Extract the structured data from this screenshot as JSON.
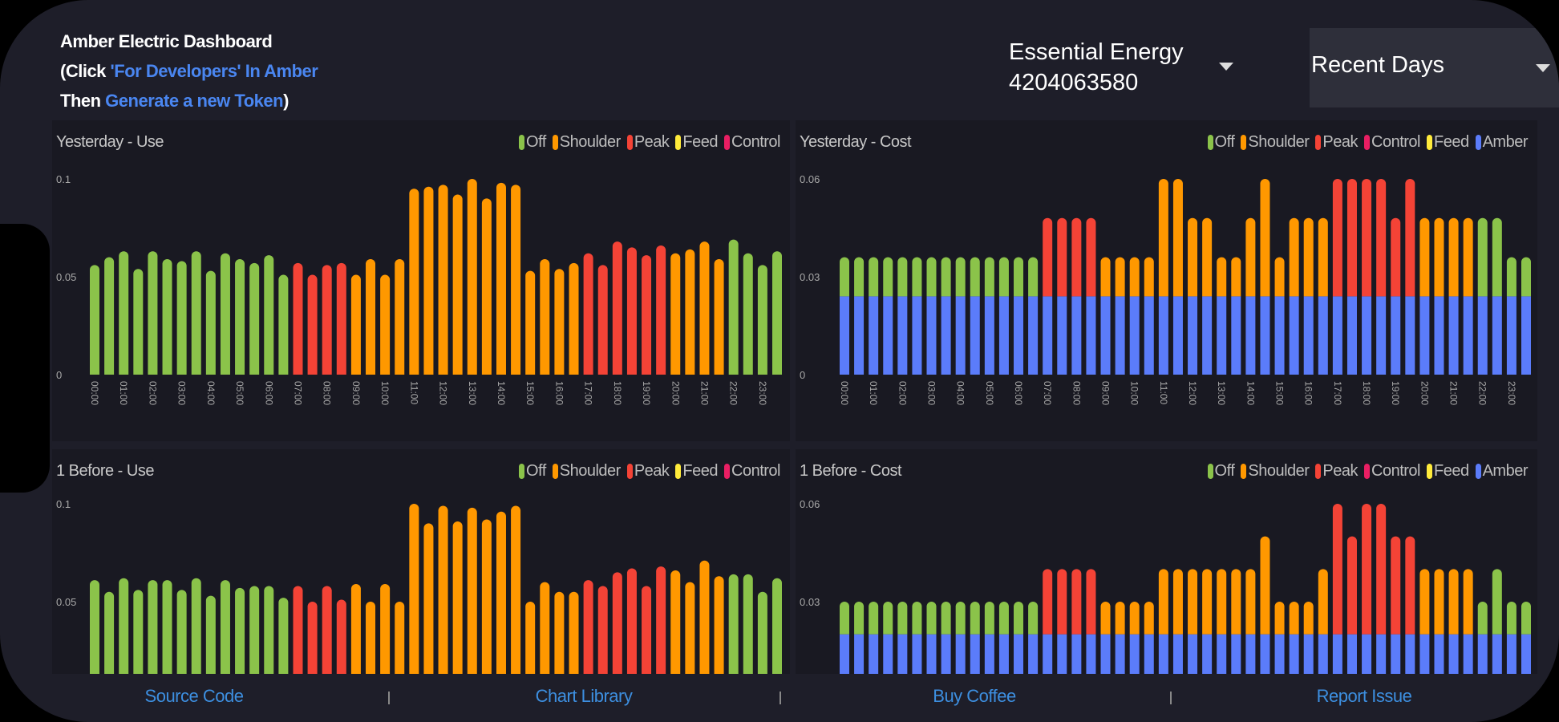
{
  "header": {
    "title": "Amber Electric Dashboard",
    "line2_prefix": "(Click ",
    "line2_link": "'For Developers' In Amber",
    "line3_prefix": "Then ",
    "line3_link": "Generate a new Token",
    "line3_suffix": ")"
  },
  "provider_select": {
    "name": "Essential Energy",
    "account": "4204063580"
  },
  "range_select": {
    "value": "Recent Days"
  },
  "colors": {
    "Off": "#8bc34a",
    "Shoulder": "#ff9800",
    "Peak": "#f44336",
    "Feed": "#ffeb3b",
    "Control": "#e91e63",
    "Amber": "#5b7cfa"
  },
  "chart_data": [
    {
      "type": "bar",
      "title": "Yesterday - Use",
      "legend": [
        "Off",
        "Shoulder",
        "Peak",
        "Feed",
        "Control"
      ],
      "ylim": [
        0,
        0.1
      ],
      "y_tick_labels": [
        "0.1",
        "0.05",
        "0"
      ],
      "y_ticks": [
        0.1,
        0.05,
        0
      ],
      "x_tick_labels": [
        "00:00",
        "01:00",
        "02:00",
        "03:00",
        "04:00",
        "05:00",
        "06:00",
        "07:00",
        "08:00",
        "09:00",
        "10:00",
        "11:00",
        "12:00",
        "13:00",
        "14:00",
        "15:00",
        "16:00",
        "17:00",
        "18:00",
        "19:00",
        "20:00",
        "21:00",
        "22:00",
        "23:00"
      ],
      "values": [
        0.056,
        0.06,
        0.063,
        0.054,
        0.063,
        0.059,
        0.058,
        0.063,
        0.053,
        0.062,
        0.059,
        0.057,
        0.061,
        0.051,
        0.057,
        0.051,
        0.056,
        0.057,
        0.051,
        0.059,
        0.051,
        0.059,
        0.095,
        0.096,
        0.097,
        0.092,
        0.1,
        0.09,
        0.098,
        0.097,
        0.053,
        0.059,
        0.054,
        0.057,
        0.062,
        0.056,
        0.068,
        0.065,
        0.061,
        0.066,
        0.062,
        0.064,
        0.068,
        0.059,
        0.069,
        0.062,
        0.056,
        0.063
      ],
      "period": [
        0,
        0,
        0,
        0,
        0,
        0,
        0,
        0,
        0,
        0,
        0,
        0,
        0,
        0,
        2,
        2,
        2,
        2,
        1,
        1,
        1,
        1,
        1,
        1,
        1,
        1,
        1,
        1,
        1,
        1,
        1,
        1,
        1,
        1,
        2,
        2,
        2,
        2,
        2,
        2,
        1,
        1,
        1,
        1,
        0,
        0,
        0,
        0
      ]
    },
    {
      "type": "bar",
      "stacked": true,
      "title": "Yesterday - Cost",
      "legend": [
        "Off",
        "Shoulder",
        "Peak",
        "Control",
        "Feed",
        "Amber"
      ],
      "ylim": [
        0,
        0.06
      ],
      "y_tick_labels": [
        "0.06",
        "0.03",
        "0"
      ],
      "y_ticks": [
        0.06,
        0.03,
        0
      ],
      "x_tick_labels": [
        "00:00",
        "01:00",
        "02:00",
        "03:00",
        "04:00",
        "05:00",
        "06:00",
        "07:00",
        "08:00",
        "09:00",
        "10:00",
        "11:00",
        "12:00",
        "13:00",
        "14:00",
        "15:00",
        "16:00",
        "17:00",
        "18:00",
        "19:00",
        "20:00",
        "21:00",
        "22:00",
        "23:00"
      ],
      "amber": [
        0.024,
        0.024,
        0.024,
        0.024,
        0.024,
        0.024,
        0.024,
        0.024,
        0.024,
        0.024,
        0.024,
        0.024,
        0.024,
        0.024,
        0.024,
        0.024,
        0.024,
        0.024,
        0.024,
        0.024,
        0.024,
        0.024,
        0.024,
        0.024,
        0.024,
        0.024,
        0.024,
        0.024,
        0.024,
        0.024,
        0.024,
        0.024,
        0.024,
        0.024,
        0.024,
        0.024,
        0.024,
        0.024,
        0.024,
        0.024,
        0.024,
        0.024,
        0.024,
        0.024,
        0.024,
        0.024,
        0.024,
        0.024
      ],
      "values": [
        0.012,
        0.012,
        0.012,
        0.012,
        0.012,
        0.012,
        0.012,
        0.012,
        0.012,
        0.012,
        0.012,
        0.012,
        0.012,
        0.012,
        0.024,
        0.024,
        0.024,
        0.024,
        0.012,
        0.012,
        0.012,
        0.012,
        0.036,
        0.036,
        0.024,
        0.024,
        0.012,
        0.012,
        0.024,
        0.036,
        0.012,
        0.024,
        0.024,
        0.024,
        0.036,
        0.036,
        0.036,
        0.036,
        0.024,
        0.036,
        0.024,
        0.024,
        0.024,
        0.024,
        0.024,
        0.024,
        0.012,
        0.012
      ],
      "period": [
        0,
        0,
        0,
        0,
        0,
        0,
        0,
        0,
        0,
        0,
        0,
        0,
        0,
        0,
        2,
        2,
        2,
        2,
        1,
        1,
        1,
        1,
        1,
        1,
        1,
        1,
        1,
        1,
        1,
        1,
        1,
        1,
        1,
        1,
        2,
        2,
        2,
        2,
        2,
        2,
        1,
        1,
        1,
        1,
        0,
        0,
        0,
        0
      ]
    },
    {
      "type": "bar",
      "title": "1 Before - Use",
      "legend": [
        "Off",
        "Shoulder",
        "Peak",
        "Feed",
        "Control"
      ],
      "ylim": [
        0,
        0.1
      ],
      "y_tick_labels": [
        "0.1",
        "0.05"
      ],
      "y_ticks": [
        0.1,
        0.05
      ],
      "values": [
        0.061,
        0.055,
        0.062,
        0.056,
        0.061,
        0.061,
        0.056,
        0.062,
        0.053,
        0.061,
        0.057,
        0.058,
        0.058,
        0.052,
        0.058,
        0.05,
        0.058,
        0.051,
        0.059,
        0.05,
        0.059,
        0.05,
        0.1,
        0.09,
        0.099,
        0.091,
        0.098,
        0.092,
        0.096,
        0.099,
        0.05,
        0.06,
        0.055,
        0.055,
        0.061,
        0.058,
        0.065,
        0.067,
        0.058,
        0.068,
        0.066,
        0.06,
        0.071,
        0.063,
        0.064,
        0.064,
        0.055,
        0.062
      ],
      "period": [
        0,
        0,
        0,
        0,
        0,
        0,
        0,
        0,
        0,
        0,
        0,
        0,
        0,
        0,
        2,
        2,
        2,
        2,
        1,
        1,
        1,
        1,
        1,
        1,
        1,
        1,
        1,
        1,
        1,
        1,
        1,
        1,
        1,
        1,
        2,
        2,
        2,
        2,
        2,
        2,
        1,
        1,
        1,
        1,
        0,
        0,
        0,
        0
      ]
    },
    {
      "type": "bar",
      "stacked": true,
      "title": "1 Before - Cost",
      "legend": [
        "Off",
        "Shoulder",
        "Peak",
        "Control",
        "Feed",
        "Amber"
      ],
      "ylim": [
        0,
        0.06
      ],
      "y_tick_labels": [
        "0.06",
        "0.03"
      ],
      "y_ticks": [
        0.06,
        0.03
      ],
      "amber": [
        0.02,
        0.02,
        0.02,
        0.02,
        0.02,
        0.02,
        0.02,
        0.02,
        0.02,
        0.02,
        0.02,
        0.02,
        0.02,
        0.02,
        0.02,
        0.02,
        0.02,
        0.02,
        0.02,
        0.02,
        0.02,
        0.02,
        0.02,
        0.02,
        0.02,
        0.02,
        0.02,
        0.02,
        0.02,
        0.02,
        0.02,
        0.02,
        0.02,
        0.02,
        0.02,
        0.02,
        0.02,
        0.02,
        0.02,
        0.02,
        0.02,
        0.02,
        0.02,
        0.02,
        0.02,
        0.02,
        0.02,
        0.02
      ],
      "values": [
        0.01,
        0.01,
        0.01,
        0.01,
        0.01,
        0.01,
        0.01,
        0.01,
        0.01,
        0.01,
        0.01,
        0.01,
        0.01,
        0.01,
        0.02,
        0.02,
        0.02,
        0.02,
        0.01,
        0.01,
        0.01,
        0.01,
        0.02,
        0.02,
        0.02,
        0.02,
        0.02,
        0.02,
        0.02,
        0.03,
        0.01,
        0.01,
        0.01,
        0.02,
        0.04,
        0.03,
        0.04,
        0.04,
        0.03,
        0.03,
        0.02,
        0.02,
        0.02,
        0.02,
        0.01,
        0.02,
        0.01,
        0.01
      ],
      "period": [
        0,
        0,
        0,
        0,
        0,
        0,
        0,
        0,
        0,
        0,
        0,
        0,
        0,
        0,
        2,
        2,
        2,
        2,
        1,
        1,
        1,
        1,
        1,
        1,
        1,
        1,
        1,
        1,
        1,
        1,
        1,
        1,
        1,
        1,
        2,
        2,
        2,
        2,
        2,
        2,
        1,
        1,
        1,
        1,
        0,
        0,
        0,
        0
      ]
    }
  ],
  "footer": {
    "links": [
      "Source Code",
      "Chart Library",
      "Buy Coffee",
      "Report Issue"
    ]
  }
}
